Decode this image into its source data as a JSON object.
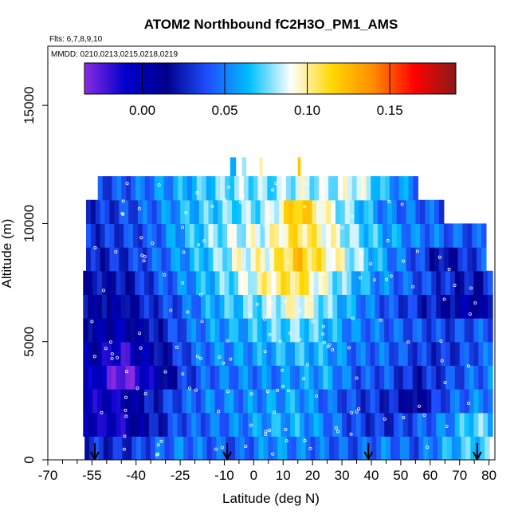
{
  "chart_data": {
    "type": "heatmap",
    "title": "ATOM2 Northbound fC2H3O_PM1_AMS",
    "notes": [
      "Flts: 6,7,8,9,10",
      "MMDD: 0210,0213,0215,0218,0219"
    ],
    "xlabel": "Latitude (deg N)",
    "ylabel": "Altitude (m)",
    "xlim": [
      -70,
      82
    ],
    "ylim": [
      0,
      17500
    ],
    "x_tick_labels": [
      "-70",
      "-55",
      "-40",
      "-25",
      "-10",
      "0",
      "10",
      "20",
      "30",
      "40",
      "50",
      "60",
      "70",
      "80"
    ],
    "x_tick_values": [
      -70,
      -55,
      -40,
      -25,
      -10,
      0,
      10,
      20,
      30,
      40,
      50,
      60,
      70,
      80
    ],
    "x_minor_ticks": [
      -65,
      -60,
      -50,
      -45,
      -35,
      -30,
      -20,
      -15,
      -5,
      5,
      15,
      25,
      35,
      45,
      55,
      65,
      75
    ],
    "y_tick_labels": [
      "0",
      "5000",
      "10000",
      "15000"
    ],
    "y_tick_values": [
      0,
      5000,
      10000,
      15000
    ],
    "colorbar": {
      "range": [
        -0.035,
        0.19
      ],
      "tick_labels": [
        "0.00",
        "0.05",
        "0.10",
        "0.15"
      ],
      "tick_values": [
        0.0,
        0.05,
        0.1,
        0.15
      ],
      "colors": [
        "#8a2be2",
        "#0000cd",
        "#00008b",
        "#1e50ff",
        "#00bfff",
        "#ffffff",
        "#ffd700",
        "#ff8c00",
        "#ff0000",
        "#8b1a1a"
      ]
    },
    "arrows_at_latitude": [
      -54,
      -9,
      39,
      76
    ],
    "data_extent": {
      "lat_min": -57.5,
      "lat_max": 80,
      "alt_min": 0,
      "alt_max": 12800
    },
    "altitude_bins": [
      500,
      1500,
      2500,
      3500,
      4500,
      5500,
      6500,
      7500,
      8500,
      9500,
      10500,
      11500
    ],
    "lat_grid_step": 10,
    "lat_grid_start": -55,
    "grid_values": [
      [
        0.03,
        0.028,
        0.04,
        0.05,
        0.045,
        0.04,
        0.055,
        0.05,
        0.045,
        0.04,
        0.05,
        0.04,
        0.06,
        0.07,
        0.065
      ],
      [
        -0.005,
        -0.01,
        0.02,
        0.04,
        0.045,
        0.05,
        0.06,
        0.06,
        0.05,
        0.035,
        0.03,
        0.04,
        0.05,
        0.075,
        0.06
      ],
      [
        -0.008,
        -0.005,
        0.025,
        0.04,
        0.05,
        0.05,
        0.055,
        0.06,
        0.045,
        0.035,
        0.03,
        0.01,
        0.04,
        0.05,
        0.055
      ],
      [
        0.0,
        -0.035,
        -0.005,
        0.03,
        0.045,
        0.05,
        0.05,
        0.055,
        0.06,
        0.04,
        0.04,
        0.025,
        0.035,
        0.045,
        0.05
      ],
      [
        0.005,
        -0.02,
        0.01,
        0.035,
        0.05,
        0.055,
        0.06,
        0.065,
        0.06,
        0.045,
        0.045,
        0.035,
        0.03,
        0.04,
        0.05
      ],
      [
        0.01,
        0.0,
        0.02,
        0.04,
        0.055,
        0.06,
        0.07,
        0.075,
        0.065,
        0.05,
        0.045,
        0.04,
        0.035,
        0.04,
        0.045
      ],
      [
        0.015,
        0.01,
        0.03,
        0.04,
        0.06,
        0.07,
        0.08,
        0.095,
        0.075,
        0.055,
        0.04,
        0.03,
        0.02,
        0.0,
        0.04
      ],
      [
        0.02,
        0.02,
        0.035,
        0.05,
        0.065,
        0.08,
        0.1,
        0.11,
        0.085,
        0.065,
        0.05,
        0.04,
        0.03,
        0.02,
        0.04
      ],
      [
        0.025,
        0.03,
        0.04,
        0.055,
        0.07,
        0.09,
        0.095,
        0.12,
        0.1,
        0.08,
        0.055,
        0.04,
        0.015,
        0.035,
        0.045
      ],
      [
        0.03,
        0.035,
        0.04,
        0.06,
        0.075,
        0.085,
        0.09,
        0.11,
        0.095,
        0.075,
        0.06,
        0.05,
        0.045,
        0.04,
        0.045
      ],
      [
        0.03,
        0.035,
        0.045,
        0.06,
        0.07,
        0.075,
        0.08,
        0.125,
        0.09,
        0.07,
        0.05,
        0.045,
        0.04,
        0.04,
        0.04
      ],
      [
        0.035,
        0.04,
        0.05,
        0.06,
        0.07,
        0.08,
        0.075,
        0.085,
        0.08,
        0.09,
        0.06,
        0.05,
        0.045,
        0.04,
        0.04
      ]
    ]
  }
}
